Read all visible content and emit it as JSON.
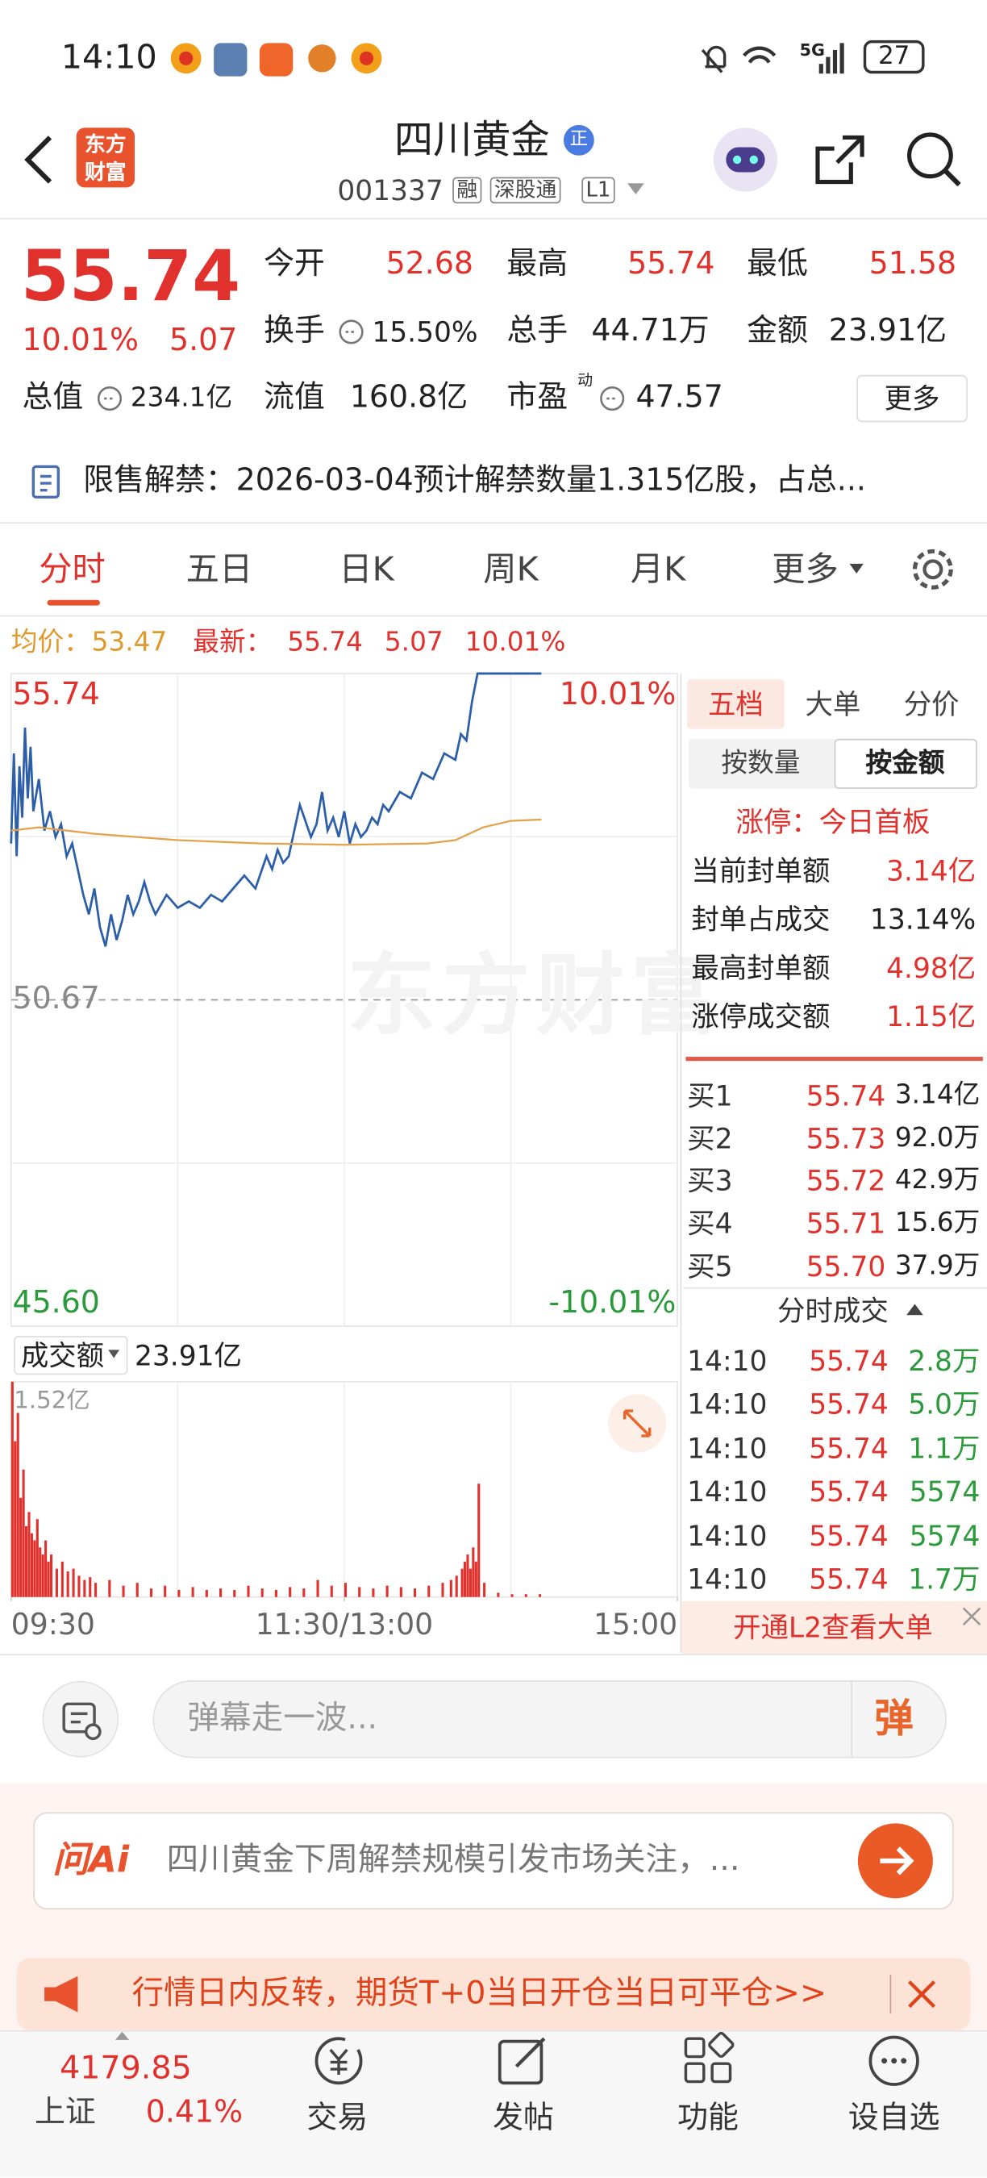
{
  "status_bar": {
    "time": "14:10",
    "network": "5G",
    "battery": "27"
  },
  "header": {
    "logo": "东方财富",
    "title": "四川黄金",
    "badge": "正",
    "code": "001337",
    "tags": [
      "融",
      "深股通",
      "L1"
    ]
  },
  "quote": {
    "price": "55.74",
    "change_pct": "10.01%",
    "change": "5.07",
    "fields": [
      {
        "label": "今开",
        "value": "52.68"
      },
      {
        "label": "最高",
        "value": "55.74"
      },
      {
        "label": "最低",
        "value": "51.58"
      },
      {
        "label": "换手",
        "value": "15.50%"
      },
      {
        "label": "总手",
        "value": "44.71万"
      },
      {
        "label": "金额",
        "value": "23.91亿"
      },
      {
        "label": "总值",
        "value": "234.1亿"
      },
      {
        "label": "流值",
        "value": "160.8亿"
      },
      {
        "label": "市盈",
        "sup": "动",
        "value": "47.57"
      }
    ],
    "more": "更多"
  },
  "notice": "限售解禁：2026-03-04预计解禁数量1.315亿股，占总...",
  "tabs": [
    "分时",
    "五日",
    "日K",
    "周K",
    "月K",
    "更多"
  ],
  "quote_line": {
    "avg_label": "均价：",
    "avg": "53.47",
    "latest_label": "最新：",
    "latest": "55.74",
    "change": "5.07",
    "change_pct": "10.01%"
  },
  "watermark": "东方财富",
  "chart_data": [
    {
      "type": "line",
      "xlim": [
        0,
        240
      ],
      "xticks": [
        {
          "value": 0,
          "label": "09:30"
        },
        {
          "value": 120,
          "label": "11:30/13:00"
        },
        {
          "value": 240,
          "label": "15:00"
        }
      ],
      "ylim": [
        45.6,
        55.74
      ],
      "yticks": [
        {
          "value": 55.74,
          "label": "55.74"
        },
        {
          "value": 50.67,
          "label": "50.67"
        },
        {
          "value": 45.6,
          "label": "45.60"
        }
      ],
      "y2lim": [
        -10.01,
        10.01
      ],
      "y2ticks": [
        {
          "value": 10.01,
          "label": "10.01%"
        },
        {
          "value": -10.01,
          "label": "-10.01%"
        }
      ],
      "grid": true,
      "series": [
        {
          "color": "#2d5fa8",
          "x": [
            0,
            1,
            2,
            3,
            4,
            5,
            6,
            7,
            8,
            10,
            12,
            14,
            16,
            18,
            20,
            22,
            24,
            26,
            28,
            30,
            32,
            34,
            36,
            38,
            40,
            42,
            44,
            46,
            48,
            50,
            52,
            56,
            60,
            64,
            68,
            72,
            76,
            80,
            84,
            88,
            92,
            94,
            96,
            98,
            100,
            104,
            108,
            110,
            112,
            114,
            116,
            118,
            120,
            122,
            124,
            126,
            128,
            130,
            132,
            134,
            136,
            140,
            144,
            148,
            152,
            156,
            160,
            162,
            164,
            166,
            168,
            172,
            176,
            180,
            184,
            188,
            191
          ],
          "values": [
            53.1,
            54.5,
            52.9,
            54.3,
            53.5,
            54.9,
            53.8,
            54.6,
            53.6,
            54.1,
            53.3,
            53.6,
            53.2,
            53.4,
            52.9,
            53.1,
            52.7,
            52.3,
            52.0,
            52.4,
            51.8,
            51.5,
            52.0,
            51.6,
            51.9,
            52.3,
            52.0,
            52.2,
            52.5,
            52.2,
            52.0,
            52.3,
            52.1,
            52.2,
            52.1,
            52.3,
            52.2,
            52.4,
            52.6,
            52.4,
            52.9,
            52.7,
            53.0,
            52.8,
            52.9,
            53.7,
            53.2,
            53.4,
            53.9,
            53.3,
            53.5,
            53.2,
            53.6,
            53.1,
            53.4,
            53.2,
            53.3,
            53.5,
            53.4,
            53.7,
            53.6,
            53.9,
            53.8,
            54.2,
            54.1,
            54.5,
            54.4,
            54.8,
            54.7,
            55.3,
            55.74,
            55.74,
            55.74,
            55.74,
            55.74,
            55.74,
            55.74
          ]
        },
        {
          "color": "#e3a24a",
          "x": [
            0,
            10,
            30,
            60,
            90,
            120,
            150,
            160,
            170,
            180,
            191
          ],
          "values": [
            53.3,
            53.35,
            53.25,
            53.15,
            53.1,
            53.08,
            53.1,
            53.15,
            53.35,
            53.45,
            53.47
          ]
        }
      ]
    },
    {
      "type": "bar",
      "title": "成交额",
      "total": "23.91亿",
      "color": "#e0312c",
      "xlim": [
        0,
        240
      ],
      "ylim": [
        0,
        1.52
      ],
      "yticks": [
        {
          "value": 1.52,
          "label": "1.52亿"
        }
      ],
      "x": [
        0,
        1,
        2,
        3,
        4,
        5,
        6,
        7,
        8,
        9,
        10,
        11,
        12,
        13,
        14,
        16,
        18,
        20,
        22,
        24,
        26,
        28,
        30,
        35,
        40,
        45,
        50,
        55,
        60,
        65,
        70,
        75,
        80,
        85,
        90,
        95,
        100,
        105,
        110,
        115,
        120,
        125,
        130,
        135,
        140,
        145,
        150,
        155,
        158,
        160,
        162,
        163,
        164,
        165,
        166,
        167,
        168,
        170,
        175,
        180,
        185,
        190
      ],
      "values": [
        1.52,
        1.1,
        1.3,
        0.7,
        0.9,
        0.5,
        0.6,
        0.45,
        0.4,
        0.55,
        0.35,
        0.3,
        0.4,
        0.25,
        0.3,
        0.2,
        0.25,
        0.18,
        0.2,
        0.15,
        0.12,
        0.14,
        0.1,
        0.12,
        0.08,
        0.1,
        0.06,
        0.08,
        0.05,
        0.07,
        0.05,
        0.06,
        0.05,
        0.08,
        0.06,
        0.05,
        0.07,
        0.06,
        0.12,
        0.08,
        0.1,
        0.07,
        0.06,
        0.08,
        0.07,
        0.06,
        0.08,
        0.1,
        0.12,
        0.15,
        0.2,
        0.25,
        0.3,
        0.2,
        0.35,
        0.25,
        0.8,
        0.1,
        0.03,
        0.02,
        0.02,
        0.02
      ]
    }
  ],
  "order_panel": {
    "tabs": [
      "五档",
      "大单",
      "分价"
    ],
    "modes": [
      "按数量",
      "按金额"
    ],
    "limit_status": "涨停：今日首板",
    "stats": [
      {
        "label": "当前封单额",
        "value": "3.14亿"
      },
      {
        "label": "封单占成交",
        "value": "13.14%"
      },
      {
        "label": "最高封单额",
        "value": "4.98亿"
      },
      {
        "label": "涨停成交额",
        "value": "1.15亿"
      }
    ],
    "bids": [
      {
        "label": "买1",
        "price": "55.74",
        "volume": "3.14亿"
      },
      {
        "label": "买2",
        "price": "55.73",
        "volume": "92.0万"
      },
      {
        "label": "买3",
        "price": "55.72",
        "volume": "42.9万"
      },
      {
        "label": "买4",
        "price": "55.71",
        "volume": "15.6万"
      },
      {
        "label": "买5",
        "price": "55.70",
        "volume": "37.9万"
      }
    ],
    "trades_title": "分时成交",
    "trades": [
      {
        "time": "14:10",
        "price": "55.74",
        "volume": "2.8万"
      },
      {
        "time": "14:10",
        "price": "55.74",
        "volume": "5.0万"
      },
      {
        "time": "14:10",
        "price": "55.74",
        "volume": "1.1万"
      },
      {
        "time": "14:10",
        "price": "55.74",
        "volume": "5574"
      },
      {
        "time": "14:10",
        "price": "55.74",
        "volume": "5574"
      },
      {
        "time": "14:10",
        "price": "55.74",
        "volume": "1.7万"
      }
    ],
    "l2_link": "开通L2查看大单"
  },
  "comment_bar": {
    "placeholder": "弹幕走一波...",
    "button": "弹"
  },
  "ai_box": {
    "logo": "问Ai",
    "text": "四川黄金下周解禁规模引发市场关注，..."
  },
  "banner": "行情日内反转，期货T+0当日开仓当日可平仓>>",
  "bottom_nav": {
    "index_value": "4179.85",
    "index_name": "上证",
    "index_change": "0.41%",
    "items": [
      "交易",
      "发帖",
      "功能",
      "设自选"
    ]
  }
}
